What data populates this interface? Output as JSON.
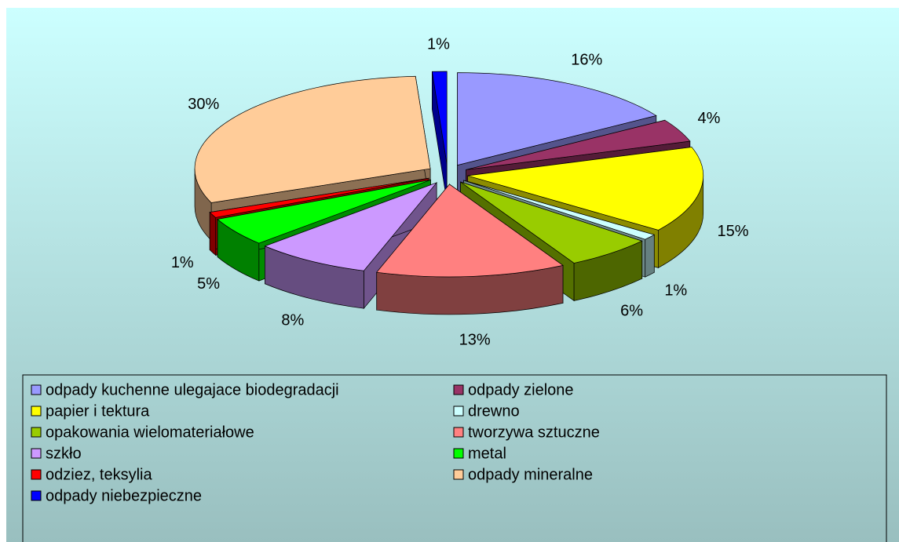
{
  "chart_data": {
    "type": "pie3d",
    "categories": [
      "odpady kuchenne ulegajace biodegradacji",
      "odpady zielone",
      "papier i tektura",
      "drewno",
      "opakowania wielomateriałowe",
      "tworzywa sztuczne",
      "szkło",
      "metal",
      "odziez, teksylia",
      "odpady mineralne",
      "odpady niebezpieczne"
    ],
    "values": [
      16,
      4,
      15,
      1,
      6,
      13,
      8,
      5,
      1,
      30,
      1
    ],
    "value_labels": [
      "16%",
      "4%",
      "15%",
      "1%",
      "6%",
      "13%",
      "8%",
      "5%",
      "1%",
      "30%",
      "1%"
    ],
    "colors": [
      "#9999FF",
      "#993366",
      "#FFFF00",
      "#CCFFFF",
      "#99CC00",
      "#FF8080",
      "#CC99FF",
      "#00FF00",
      "#FF0000",
      "#FFCC99",
      "#0000FF"
    ],
    "legend": "bottom"
  }
}
